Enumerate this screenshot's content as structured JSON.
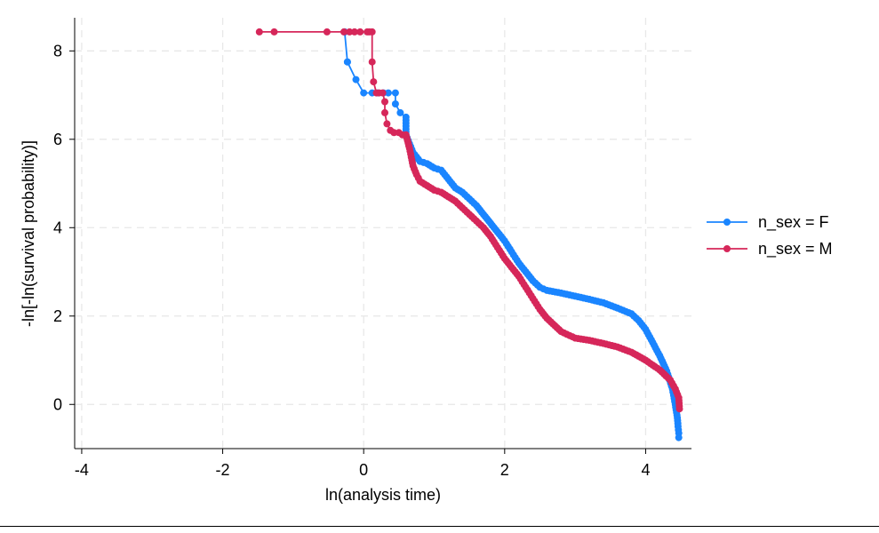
{
  "chart_data": {
    "type": "line",
    "xlabel": "ln(analysis time)",
    "ylabel": "-ln[-ln(survival probability)]",
    "xlim": [
      -4.1,
      4.65
    ],
    "ylim": [
      -1.0,
      8.75
    ],
    "xticks": [
      -4,
      -2,
      0,
      2,
      4
    ],
    "yticks": [
      0,
      2,
      4,
      6,
      8
    ],
    "grid": true,
    "legend_position": "right",
    "series": [
      {
        "name": "n_sex = F",
        "color": "#1a85ff",
        "x": [
          -0.27,
          -0.27,
          -0.23,
          -0.23,
          -0.11,
          0.0,
          0.12,
          0.2,
          0.28,
          0.35,
          0.45,
          0.45,
          0.52,
          0.6,
          0.6,
          0.65,
          0.7,
          0.75,
          0.8,
          0.9,
          1.0,
          1.1,
          1.2,
          1.3,
          1.4,
          1.5,
          1.6,
          1.7,
          1.8,
          1.9,
          2.0,
          2.1,
          2.2,
          2.3,
          2.4,
          2.5,
          2.6,
          2.8,
          3.0,
          3.2,
          3.4,
          3.6,
          3.8,
          3.9,
          4.0,
          4.1,
          4.2,
          4.3,
          4.38,
          4.42,
          4.45,
          4.46,
          4.47,
          4.47
        ],
        "y": [
          8.43,
          8.43,
          7.75,
          7.75,
          7.35,
          7.05,
          7.05,
          7.05,
          7.05,
          7.05,
          7.05,
          6.8,
          6.6,
          6.5,
          6.1,
          5.9,
          5.7,
          5.6,
          5.5,
          5.45,
          5.35,
          5.3,
          5.1,
          4.9,
          4.8,
          4.65,
          4.5,
          4.3,
          4.1,
          3.9,
          3.7,
          3.45,
          3.2,
          3.0,
          2.8,
          2.65,
          2.58,
          2.52,
          2.45,
          2.38,
          2.3,
          2.18,
          2.05,
          1.9,
          1.7,
          1.4,
          1.1,
          0.75,
          0.35,
          0.0,
          -0.3,
          -0.5,
          -0.65,
          -0.75
        ]
      },
      {
        "name": "n_sex = M",
        "color": "#d6275a",
        "x": [
          -1.48,
          -1.27,
          -0.52,
          -0.28,
          -0.2,
          -0.13,
          -0.05,
          0.05,
          0.08,
          0.12,
          0.12,
          0.14,
          0.18,
          0.22,
          0.27,
          0.3,
          0.3,
          0.33,
          0.38,
          0.43,
          0.5,
          0.55,
          0.6,
          0.65,
          0.7,
          0.75,
          0.8,
          0.9,
          1.0,
          1.1,
          1.2,
          1.3,
          1.4,
          1.5,
          1.6,
          1.7,
          1.8,
          1.9,
          2.0,
          2.1,
          2.2,
          2.3,
          2.4,
          2.5,
          2.6,
          2.8,
          3.0,
          3.2,
          3.4,
          3.6,
          3.8,
          4.0,
          4.2,
          4.35,
          4.42,
          4.47,
          4.48
        ],
        "y": [
          8.43,
          8.43,
          8.43,
          8.43,
          8.43,
          8.43,
          8.43,
          8.43,
          8.43,
          8.43,
          7.75,
          7.3,
          7.05,
          7.05,
          7.05,
          6.85,
          6.6,
          6.35,
          6.2,
          6.15,
          6.15,
          6.1,
          6.1,
          5.8,
          5.4,
          5.2,
          5.05,
          4.95,
          4.85,
          4.8,
          4.7,
          4.6,
          4.45,
          4.3,
          4.15,
          4.0,
          3.8,
          3.55,
          3.3,
          3.1,
          2.9,
          2.65,
          2.4,
          2.15,
          1.95,
          1.65,
          1.5,
          1.45,
          1.38,
          1.3,
          1.18,
          1.0,
          0.78,
          0.55,
          0.35,
          0.15,
          -0.1
        ]
      }
    ]
  }
}
